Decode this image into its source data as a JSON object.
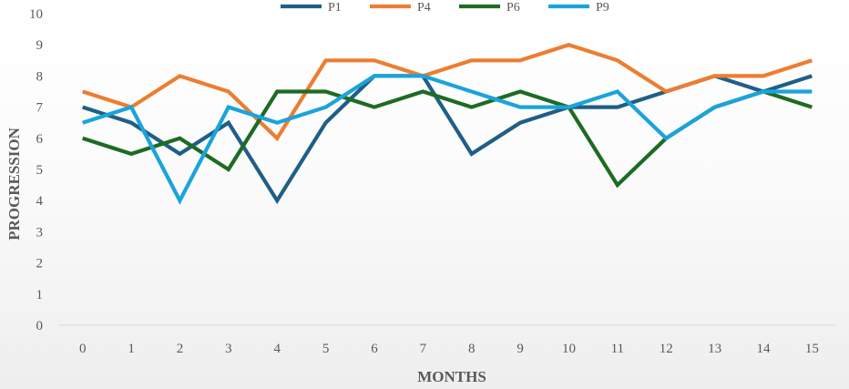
{
  "chart_data": {
    "type": "line",
    "title": "",
    "xlabel": "MONTHS",
    "ylabel": "PROGRESSION",
    "x": [
      0,
      1,
      2,
      3,
      4,
      5,
      6,
      7,
      8,
      9,
      10,
      11,
      12,
      13,
      14,
      15
    ],
    "ylim": [
      0,
      10
    ],
    "yticks": [
      0,
      1,
      2,
      3,
      4,
      5,
      6,
      7,
      8,
      9,
      10
    ],
    "grid": false,
    "legend_position": "top",
    "series": [
      {
        "name": "P1",
        "color": "#1f5f86",
        "values": [
          7,
          6.5,
          5.5,
          6.5,
          4,
          6.5,
          8,
          8,
          5.5,
          6.5,
          7,
          7,
          7.5,
          8,
          7.5,
          8
        ]
      },
      {
        "name": "P4",
        "color": "#ed7d31",
        "values": [
          7.5,
          7,
          8,
          7.5,
          6,
          8.5,
          8.5,
          8,
          8.5,
          8.5,
          9,
          8.5,
          7.5,
          8,
          8,
          8.5
        ]
      },
      {
        "name": "P6",
        "color": "#1e6b24",
        "values": [
          6,
          5.5,
          6,
          5,
          7.5,
          7.5,
          7,
          7.5,
          7,
          7.5,
          7,
          4.5,
          6,
          7,
          7.5,
          7
        ]
      },
      {
        "name": "P9",
        "color": "#1ba3dc",
        "values": [
          6.5,
          7,
          4,
          7,
          6.5,
          7,
          8,
          8,
          7.5,
          7,
          7,
          7.5,
          6,
          7,
          7.5,
          7.5
        ]
      }
    ]
  }
}
